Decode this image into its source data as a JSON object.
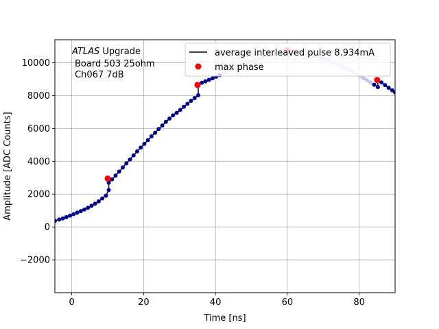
{
  "chart_data": {
    "type": "scatter",
    "title": "",
    "xlabel": "Time [ns]",
    "ylabel": "Amplitude [ADC Counts]",
    "xlim": [
      -4.7,
      90
    ],
    "ylim": [
      -4000,
      11400
    ],
    "xticks": [
      0,
      20,
      40,
      60,
      80
    ],
    "xtick_labels": [
      "0",
      "20",
      "40",
      "60",
      "80"
    ],
    "yticks": [
      -2000,
      0,
      2000,
      4000,
      6000,
      8000,
      10000
    ],
    "ytick_labels": [
      "−2000",
      "0",
      "2000",
      "4000",
      "6000",
      "8000",
      "10000"
    ],
    "grid": true,
    "legend_position": "top-right",
    "annotation": {
      "line1_italic": "ATLAS",
      "line1_rest": " Upgrade",
      "line2": "Board 503 25ohm",
      "line3": "Ch067 7dB"
    },
    "legend": [
      {
        "label": "average interleaved pulse 8.934mA",
        "marker": "line",
        "color": "#000000"
      },
      {
        "label": "max phase",
        "marker": "circle",
        "color": "#ff0000"
      }
    ],
    "series": [
      {
        "name": "average interleaved pulse 8.934mA",
        "style": "line-with-markers",
        "line_color": "#000000",
        "marker_color": "#00008b",
        "faded_marker_color": "#c8c8e6",
        "points": [
          [
            -4.7,
            370
          ],
          [
            -3.5,
            450
          ],
          [
            -2.5,
            520
          ],
          [
            -1.5,
            600
          ],
          [
            -0.5,
            690
          ],
          [
            0.5,
            780
          ],
          [
            1.5,
            870
          ],
          [
            2.5,
            960
          ],
          [
            3.5,
            1060
          ],
          [
            4.5,
            1170
          ],
          [
            5.5,
            1290
          ],
          [
            6.5,
            1420
          ],
          [
            7.5,
            1560
          ],
          [
            8.5,
            1740
          ],
          [
            9.5,
            1900
          ],
          [
            10.3,
            2250
          ],
          [
            10.3,
            2700
          ],
          [
            11.2,
            2900
          ],
          [
            12.2,
            3130
          ],
          [
            13.2,
            3370
          ],
          [
            14.2,
            3620
          ],
          [
            15.2,
            3870
          ],
          [
            16.2,
            4110
          ],
          [
            17.2,
            4360
          ],
          [
            18.2,
            4600
          ],
          [
            19.2,
            4830
          ],
          [
            20.2,
            5060
          ],
          [
            21.2,
            5290
          ],
          [
            22.2,
            5520
          ],
          [
            23.2,
            5740
          ],
          [
            24.2,
            5970
          ],
          [
            25.2,
            6180
          ],
          [
            26.2,
            6400
          ],
          [
            27.2,
            6600
          ],
          [
            28.2,
            6800
          ],
          [
            29.2,
            6950
          ],
          [
            30.2,
            7130
          ],
          [
            31.2,
            7320
          ],
          [
            32.2,
            7500
          ],
          [
            33.2,
            7680
          ],
          [
            34.2,
            7850
          ],
          [
            35.2,
            8020
          ],
          [
            35.2,
            8680
          ],
          [
            36.2,
            8780
          ],
          [
            37.2,
            8870
          ],
          [
            38.2,
            8960
          ],
          [
            39.2,
            9050
          ],
          [
            40.2,
            9150
          ],
          [
            41.2,
            9250
          ],
          [
            42.2,
            9350
          ],
          [
            43.2,
            9450
          ],
          [
            44.2,
            9550
          ],
          [
            45.2,
            9650
          ],
          [
            46.2,
            9740
          ],
          [
            47.2,
            9830
          ],
          [
            48.2,
            9920
          ],
          [
            49.2,
            10010
          ],
          [
            50.2,
            10090
          ],
          [
            51.2,
            10170
          ],
          [
            52.2,
            10240
          ],
          [
            53.2,
            10310
          ],
          [
            54.2,
            10370
          ],
          [
            55.2,
            10430
          ],
          [
            56.2,
            10480
          ],
          [
            57.2,
            10520
          ],
          [
            58.2,
            10560
          ],
          [
            59.2,
            10590
          ],
          [
            60.2,
            10610
          ],
          [
            60.2,
            10740
          ],
          [
            61.2,
            10720
          ],
          [
            62.2,
            10690
          ],
          [
            63.2,
            10650
          ],
          [
            64.2,
            10610
          ],
          [
            65.2,
            10560
          ],
          [
            66.2,
            10510
          ],
          [
            67.2,
            10450
          ],
          [
            68.2,
            10380
          ],
          [
            69.2,
            10310
          ],
          [
            70.2,
            10230
          ],
          [
            71.2,
            10150
          ],
          [
            72.2,
            10060
          ],
          [
            73.2,
            9970
          ],
          [
            74.2,
            9870
          ],
          [
            75.2,
            9770
          ],
          [
            76.2,
            9660
          ],
          [
            77.2,
            9550
          ],
          [
            78.2,
            9430
          ],
          [
            79.2,
            9310
          ],
          [
            80.2,
            9190
          ],
          [
            81.2,
            9060
          ],
          [
            82.2,
            8930
          ],
          [
            83.2,
            8800
          ],
          [
            84.2,
            8660
          ],
          [
            85.2,
            8520
          ],
          [
            85.2,
            8960
          ],
          [
            86.2,
            8800
          ],
          [
            87.2,
            8640
          ],
          [
            88.2,
            8480
          ],
          [
            89.2,
            8320
          ],
          [
            90,
            8200
          ]
        ],
        "faded_x_range": [
          42,
          84
        ]
      },
      {
        "name": "max phase",
        "style": "markers",
        "color": "#ff0000",
        "points": [
          [
            10,
            2950
          ],
          [
            35,
            8650
          ],
          [
            60,
            10750
          ],
          [
            85,
            8950
          ]
        ]
      }
    ]
  }
}
